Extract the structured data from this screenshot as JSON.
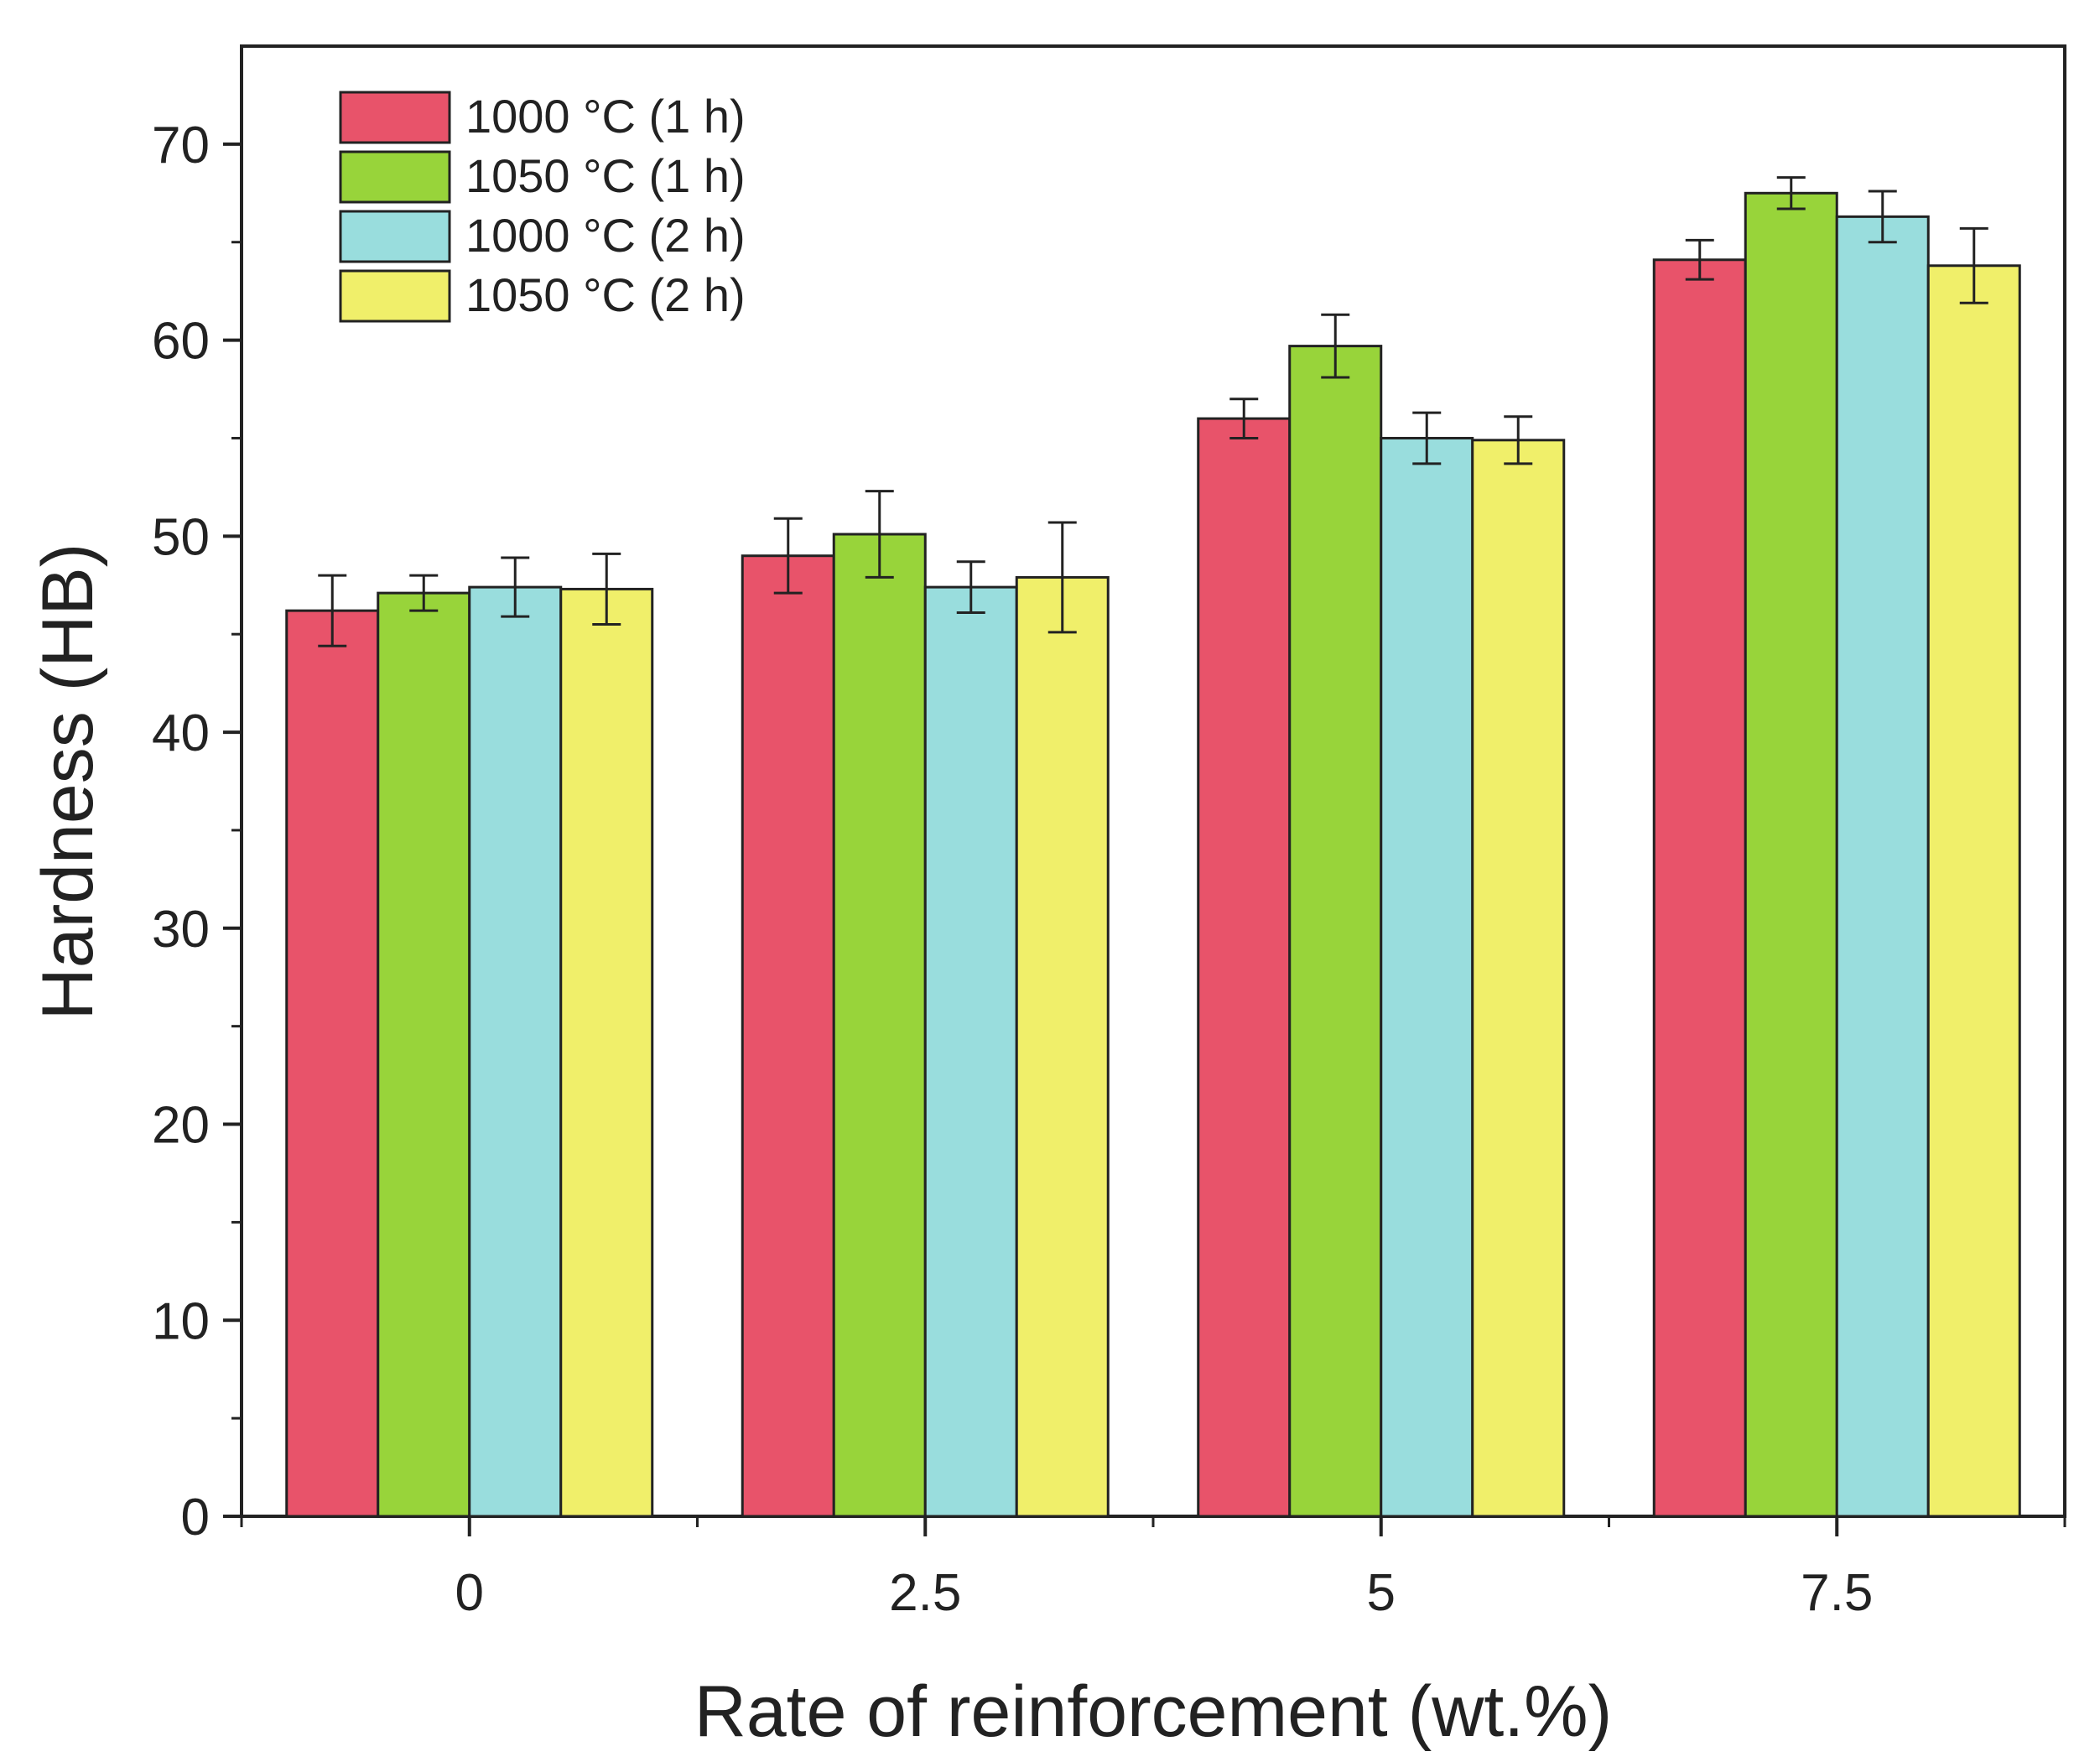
{
  "chart_data": {
    "type": "bar",
    "title": "",
    "xlabel": "Rate of reinforcement (wt.%)",
    "ylabel": "Hardness (HB)",
    "categories": [
      "0",
      "2.5",
      "5",
      "7.5"
    ],
    "ylim": [
      0,
      75
    ],
    "yticks": [
      0,
      10,
      20,
      30,
      40,
      50,
      60,
      70
    ],
    "grid": false,
    "legend_position": "top-left",
    "series": [
      {
        "name": "1000 °C (1 h)",
        "color": "#e8536a",
        "values": [
          46.2,
          49.0,
          56.0,
          64.1
        ],
        "errors": [
          1.8,
          1.9,
          1.0,
          1.0
        ]
      },
      {
        "name": "1050 °C (1 h)",
        "color": "#98d43a",
        "values": [
          47.1,
          50.1,
          59.7,
          67.5
        ],
        "errors": [
          0.9,
          2.2,
          1.6,
          0.8
        ]
      },
      {
        "name": "1000 °C (2 h)",
        "color": "#99dddd",
        "values": [
          47.4,
          47.4,
          55.0,
          66.3
        ],
        "errors": [
          1.5,
          1.3,
          1.3,
          1.3
        ]
      },
      {
        "name": "1050 °C (2 h)",
        "color": "#f0ef6a",
        "values": [
          47.3,
          47.9,
          54.9,
          63.8
        ],
        "errors": [
          1.8,
          2.8,
          1.2,
          1.9
        ]
      }
    ]
  }
}
